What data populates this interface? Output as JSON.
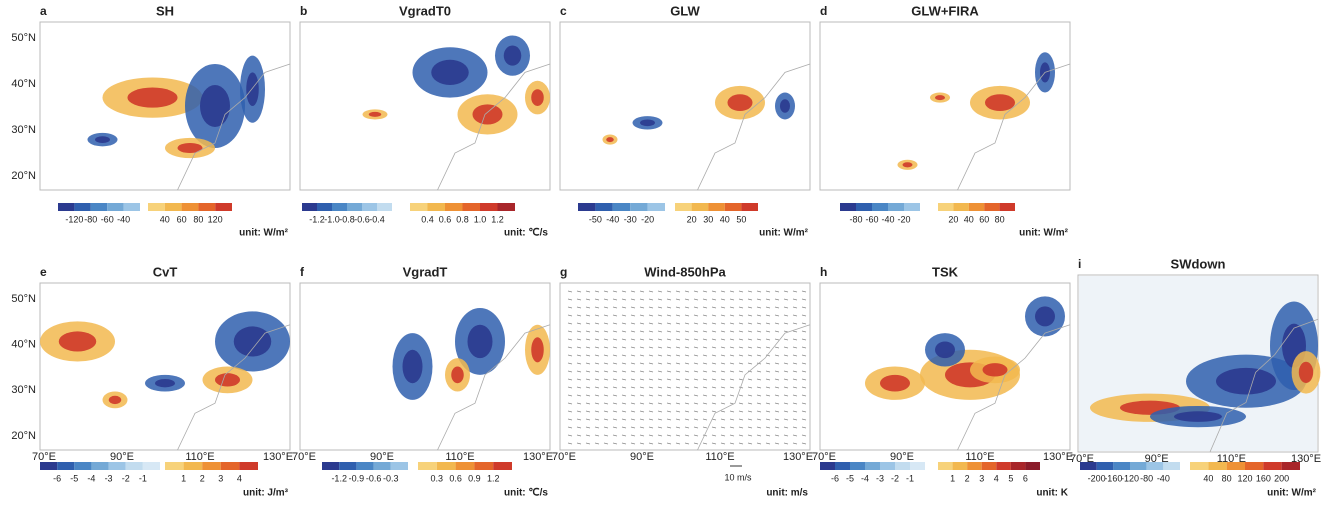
{
  "panels": [
    {
      "letter": "a",
      "title": "SH",
      "yticks": [
        "50°N",
        "40°N",
        "30°N",
        "20°N"
      ],
      "colorbar": {
        "neg": [
          "-120",
          "-80",
          "-60",
          "-40"
        ],
        "pos": [
          "40",
          "60",
          "80",
          "120"
        ]
      },
      "unit": "unit: W/m²"
    },
    {
      "letter": "b",
      "title": "VgradT0",
      "colorbar": {
        "neg": [
          "-1.2",
          "-1.0",
          "-0.8",
          "-0.6",
          "-0.4"
        ],
        "pos": [
          "0.4",
          "0.6",
          "0.8",
          "1.0",
          "1.2"
        ]
      },
      "unit": "unit: ℃/s"
    },
    {
      "letter": "c",
      "title": "GLW",
      "colorbar": {
        "neg": [
          "-50",
          "-40",
          "-30",
          "-20"
        ],
        "pos": [
          "20",
          "30",
          "40",
          "50"
        ]
      },
      "unit": "unit: W/m²"
    },
    {
      "letter": "d",
      "title": "GLW+FIRA",
      "colorbar": {
        "neg": [
          "-80",
          "-60",
          "-40",
          "-20"
        ],
        "pos": [
          "20",
          "40",
          "60",
          "80"
        ]
      },
      "unit": "unit: W/m²"
    },
    {
      "letter": "e",
      "title": "CvT",
      "yticks": [
        "50°N",
        "40°N",
        "30°N",
        "20°N"
      ],
      "xticks": [
        "70°E",
        "90°E",
        "110°E",
        "130°E"
      ],
      "colorbar": {
        "neg": [
          "-6",
          "-5",
          "-4",
          "-3",
          "-2",
          "-1"
        ],
        "pos": [
          "1",
          "2",
          "3",
          "4"
        ]
      },
      "unit": "unit: J/m³"
    },
    {
      "letter": "f",
      "title": "VgradT",
      "xticks": [
        "70°E",
        "90°E",
        "110°E",
        "130°E"
      ],
      "colorbar": {
        "neg": [
          "-1.2",
          "-0.9",
          "-0.6",
          "-0.3"
        ],
        "pos": [
          "0.3",
          "0.6",
          "0.9",
          "1.2"
        ]
      },
      "unit": "unit: ℃/s"
    },
    {
      "letter": "g",
      "title": "Wind-850hPa",
      "xticks": [
        "70°E",
        "90°E",
        "110°E",
        "130°E"
      ],
      "reference": "10 m/s",
      "unit": "unit: m/s"
    },
    {
      "letter": "h",
      "title": "TSK",
      "xticks": [
        "70°E",
        "90°E",
        "110°E",
        "130°E"
      ],
      "colorbar": {
        "neg": [
          "-6",
          "-5",
          "-4",
          "-3",
          "-2",
          "-1"
        ],
        "pos": [
          "1",
          "2",
          "3",
          "4",
          "5",
          "6"
        ]
      },
      "unit": "unit: K"
    },
    {
      "letter": "i",
      "title": "SWdown",
      "xticks": [
        "70°E",
        "90°E",
        "110°E",
        "130°E"
      ],
      "colorbar": {
        "neg": [
          "-200",
          "-160",
          "-120",
          "-80",
          "-40"
        ],
        "pos": [
          "40",
          "80",
          "120",
          "160",
          "200"
        ]
      },
      "unit": "unit: W/m²"
    }
  ]
}
